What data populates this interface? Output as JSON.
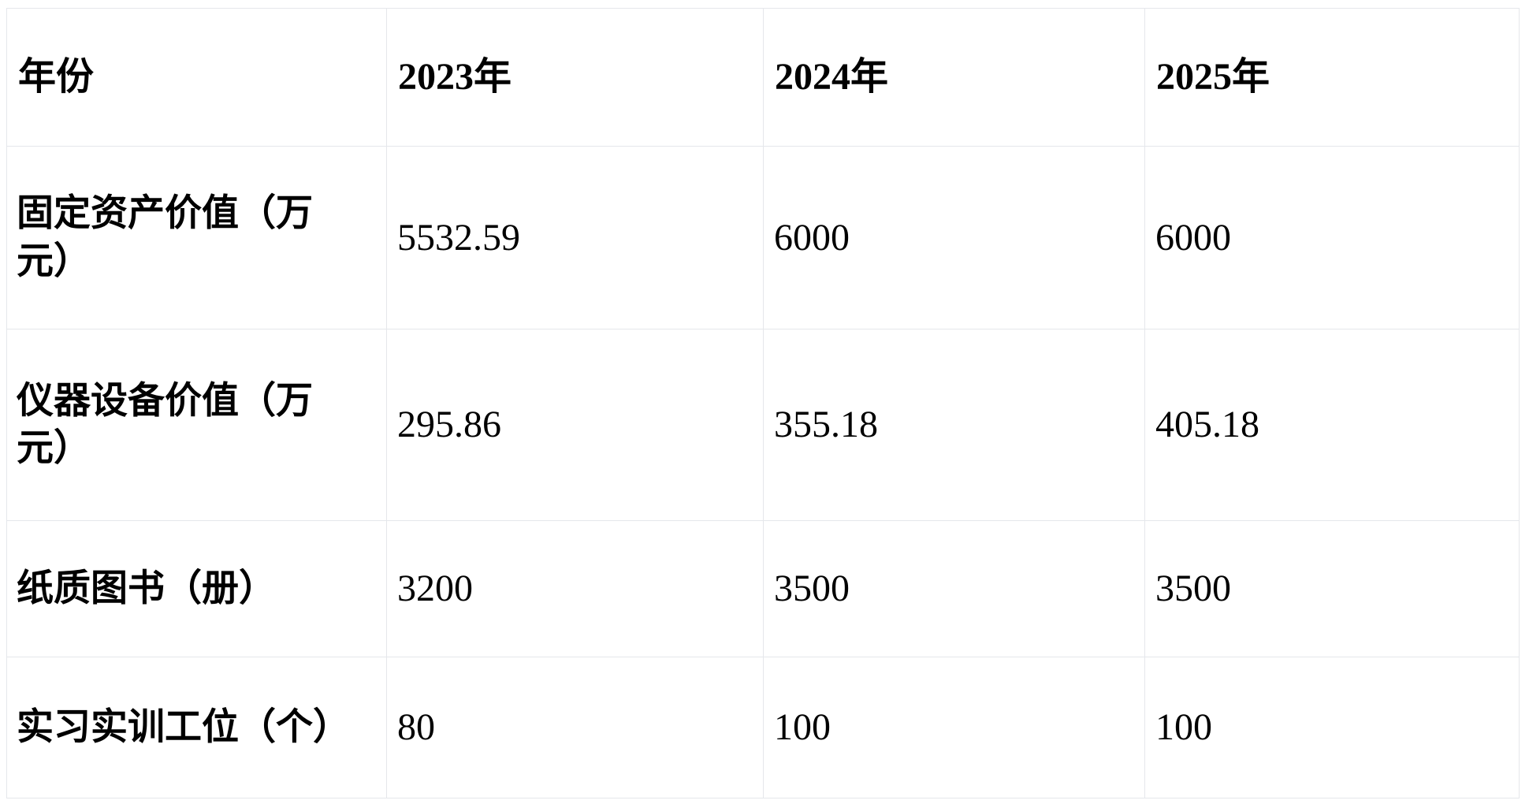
{
  "colors": {
    "background": "#ffffff",
    "border": "#e5e7eb",
    "text": "#000000"
  },
  "table": {
    "columns": [
      "年份",
      "2023年",
      "2024年",
      "2025年"
    ],
    "rows": [
      {
        "label": "固定资产价值（万元）",
        "values": [
          "5532.59",
          "6000",
          "6000"
        ]
      },
      {
        "label": "仪器设备价值（万元）",
        "values": [
          "295.86",
          "355.18",
          "405.18"
        ]
      },
      {
        "label": "纸质图书（册）",
        "values": [
          "3200",
          "3500",
          "3500"
        ]
      },
      {
        "label": "实习实训工位（个）",
        "values": [
          "80",
          "100",
          "100"
        ]
      }
    ]
  },
  "chart_data": {
    "type": "table",
    "header_label": "年份",
    "categories": [
      "2023年",
      "2024年",
      "2025年"
    ],
    "series": [
      {
        "name": "固定资产价值（万元）",
        "values": [
          5532.59,
          6000,
          6000
        ]
      },
      {
        "name": "仪器设备价值（万元）",
        "values": [
          295.86,
          355.18,
          405.18
        ]
      },
      {
        "name": "纸质图书（册）",
        "values": [
          3200,
          3500,
          3500
        ]
      },
      {
        "name": "实习实训工位（个）",
        "values": [
          80,
          100,
          100
        ]
      }
    ],
    "layout": {
      "grid": true,
      "columns_equal_width": true,
      "header_row_bold": true,
      "label_column_bold": true
    }
  }
}
